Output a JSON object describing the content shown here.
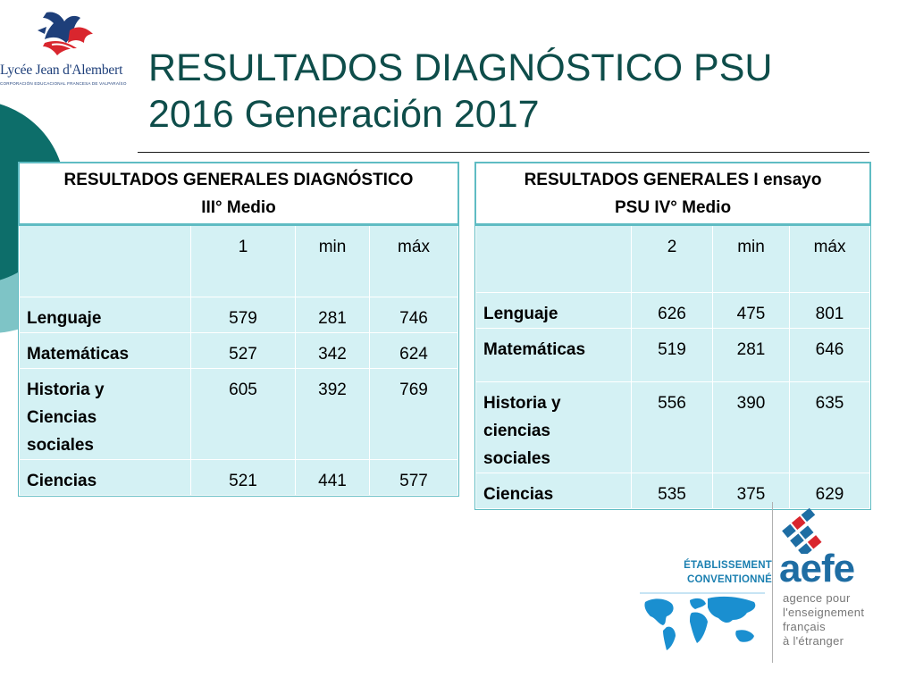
{
  "logo": {
    "name": "Lycée Jean d'Alembert",
    "subtitle": "CORPORACIÓN EDUCACIONAL FRANCESA DE VALPARAÍSO"
  },
  "slide": {
    "title_line1": "RESULTADOS DIAGNÓSTICO PSU",
    "title_line2": "2016 Generación 2017"
  },
  "table_left": {
    "caption_line1": "RESULTADOS GENERALES DIAGNÓSTICO",
    "caption_line2": "III° Medio",
    "header": [
      "",
      "1",
      "min",
      "máx"
    ],
    "rows": [
      {
        "label": "Lenguaje",
        "v": "579",
        "min": "281",
        "max": "746"
      },
      {
        "label_lines": [
          "Matemáticas"
        ],
        "label": "Matemáticas",
        "v": "527",
        "min": "342",
        "max": "624"
      },
      {
        "label_lines": [
          "Historia y",
          "Ciencias",
          "sociales"
        ],
        "v": "605",
        "min": "392",
        "max": "769"
      },
      {
        "label": "Ciencias",
        "v": "521",
        "min": "441",
        "max": "577"
      }
    ]
  },
  "table_right": {
    "caption_line1": "RESULTADOS GENERALES I ensayo",
    "caption_line2": "PSU IV° Medio",
    "header": [
      "",
      "2",
      "min",
      "máx"
    ],
    "rows": [
      {
        "label": "Lenguaje",
        "v": "626",
        "min": "475",
        "max": "801"
      },
      {
        "label": "Matemáticas",
        "v": "519",
        "min": "281",
        "max": "646"
      },
      {
        "label_lines": [
          "Historia y",
          "ciencias",
          "sociales"
        ],
        "v": "556",
        "min": "390",
        "max": "635"
      },
      {
        "label": "Ciencias",
        "v": "535",
        "min": "375",
        "max": "629"
      }
    ]
  },
  "aefe_logo": {
    "etab_line1": "ÉTABLISSEMENT",
    "etab_line2": "CONVENTIONNÉ",
    "name": "aefe",
    "line1": "agence pour",
    "line2": "l'enseignement",
    "line3": "français",
    "line4": "à l'étranger"
  },
  "colors": {
    "title": "#0e4d4a",
    "table_border": "#5fbcc3",
    "cell_fill": "#d4f1f4",
    "circle_dark": "#0d6e6a",
    "circle_light": "#7ec4c6",
    "aefe_blue": "#1e6da3",
    "etab_blue": "#1a7fb0"
  }
}
